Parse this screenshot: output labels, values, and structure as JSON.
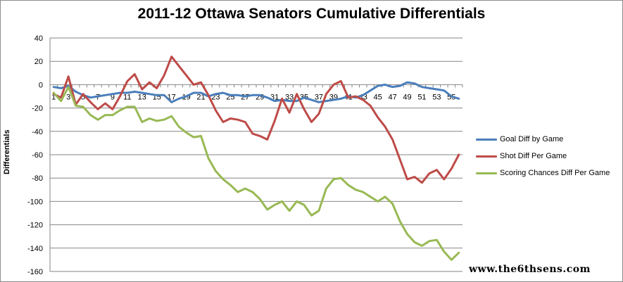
{
  "chart_data": {
    "type": "line",
    "title": "2011-12 Ottawa Senators Cumulative Differentials",
    "ylabel": "Differentials",
    "xlabel": "",
    "ylim": [
      -160,
      40
    ],
    "yticks": [
      "40",
      "20",
      "0",
      "-20",
      "-40",
      "-60",
      "-80",
      "-100",
      "-120",
      "-140",
      "-160"
    ],
    "ytick_values": [
      40,
      20,
      0,
      -20,
      -40,
      -60,
      -80,
      -100,
      -120,
      -140,
      -160
    ],
    "x": [
      1,
      2,
      3,
      4,
      5,
      6,
      7,
      8,
      9,
      10,
      11,
      12,
      13,
      14,
      15,
      16,
      17,
      18,
      19,
      20,
      21,
      22,
      23,
      24,
      25,
      26,
      27,
      28,
      29,
      30,
      31,
      32,
      33,
      34,
      35,
      36,
      37,
      38,
      39,
      40,
      41,
      42,
      43,
      44,
      45,
      46,
      47,
      48,
      49,
      50,
      51,
      52,
      53,
      54,
      55,
      56
    ],
    "xticks": [
      "1",
      "3",
      "5",
      "7",
      "9",
      "11",
      "13",
      "15",
      "17",
      "19",
      "21",
      "23",
      "25",
      "27",
      "29",
      "31",
      "33",
      "35",
      "37",
      "39",
      "41",
      "43",
      "45",
      "47",
      "49",
      "51",
      "53",
      "55"
    ],
    "xtick_values": [
      1,
      3,
      5,
      7,
      9,
      11,
      13,
      15,
      17,
      19,
      21,
      23,
      25,
      27,
      29,
      31,
      33,
      35,
      37,
      39,
      41,
      43,
      45,
      47,
      49,
      51,
      53,
      55
    ],
    "grid": "horizontal",
    "legend_position": "right",
    "series": [
      {
        "name": "Goal Diff by Game",
        "color": "#4a7ebb",
        "values": [
          -2,
          -3,
          -1,
          -6,
          -9,
          -11,
          -10,
          -9,
          -8,
          -7,
          -7,
          -6,
          -7,
          -8,
          -9,
          -9,
          -15,
          -12,
          -10,
          -7,
          -7,
          -10,
          -8,
          -7,
          -9,
          -9,
          -10,
          -9,
          -9,
          -11,
          -14,
          -13,
          -14,
          -14,
          -11,
          -13,
          -15,
          -14,
          -13,
          -12,
          -10,
          -11,
          -9,
          -5,
          -1,
          0,
          -2,
          -1,
          2,
          1,
          -2,
          -3,
          -4,
          -5,
          -10,
          -12
        ]
      },
      {
        "name": "Shot Diff Per Game",
        "color": "#be4b48",
        "values": [
          -8,
          -11,
          7,
          -17,
          -8,
          -15,
          -21,
          -16,
          -21,
          -10,
          3,
          9,
          -4,
          2,
          -3,
          8,
          24,
          16,
          8,
          0,
          2,
          -9,
          -22,
          -32,
          -29,
          -30,
          -32,
          -42,
          -44,
          -47,
          -31,
          -12,
          -24,
          -8,
          -21,
          -32,
          -25,
          -8,
          0,
          3,
          -11,
          -10,
          -13,
          -18,
          -28,
          -36,
          -47,
          -64,
          -81,
          -79,
          -84,
          -76,
          -73,
          -81,
          -72,
          -60
        ]
      },
      {
        "name": "Scoring Chances Diff Per Game",
        "color": "#98b954",
        "values": [
          -7,
          -14,
          -2,
          -18,
          -19,
          -26,
          -30,
          -26,
          -26,
          -22,
          -19,
          -19,
          -32,
          -29,
          -31,
          -30,
          -27,
          -36,
          -41,
          -45,
          -44,
          -63,
          -74,
          -81,
          -86,
          -92,
          -89,
          -92,
          -98,
          -107,
          -103,
          -100,
          -108,
          -100,
          -103,
          -112,
          -108,
          -89,
          -81,
          -80,
          -86,
          -90,
          -92,
          -96,
          -100,
          -96,
          -102,
          -117,
          -128,
          -135,
          -138,
          -134,
          -133,
          -143,
          -150,
          -144
        ]
      }
    ]
  },
  "watermark": "www.the6thsens.com"
}
